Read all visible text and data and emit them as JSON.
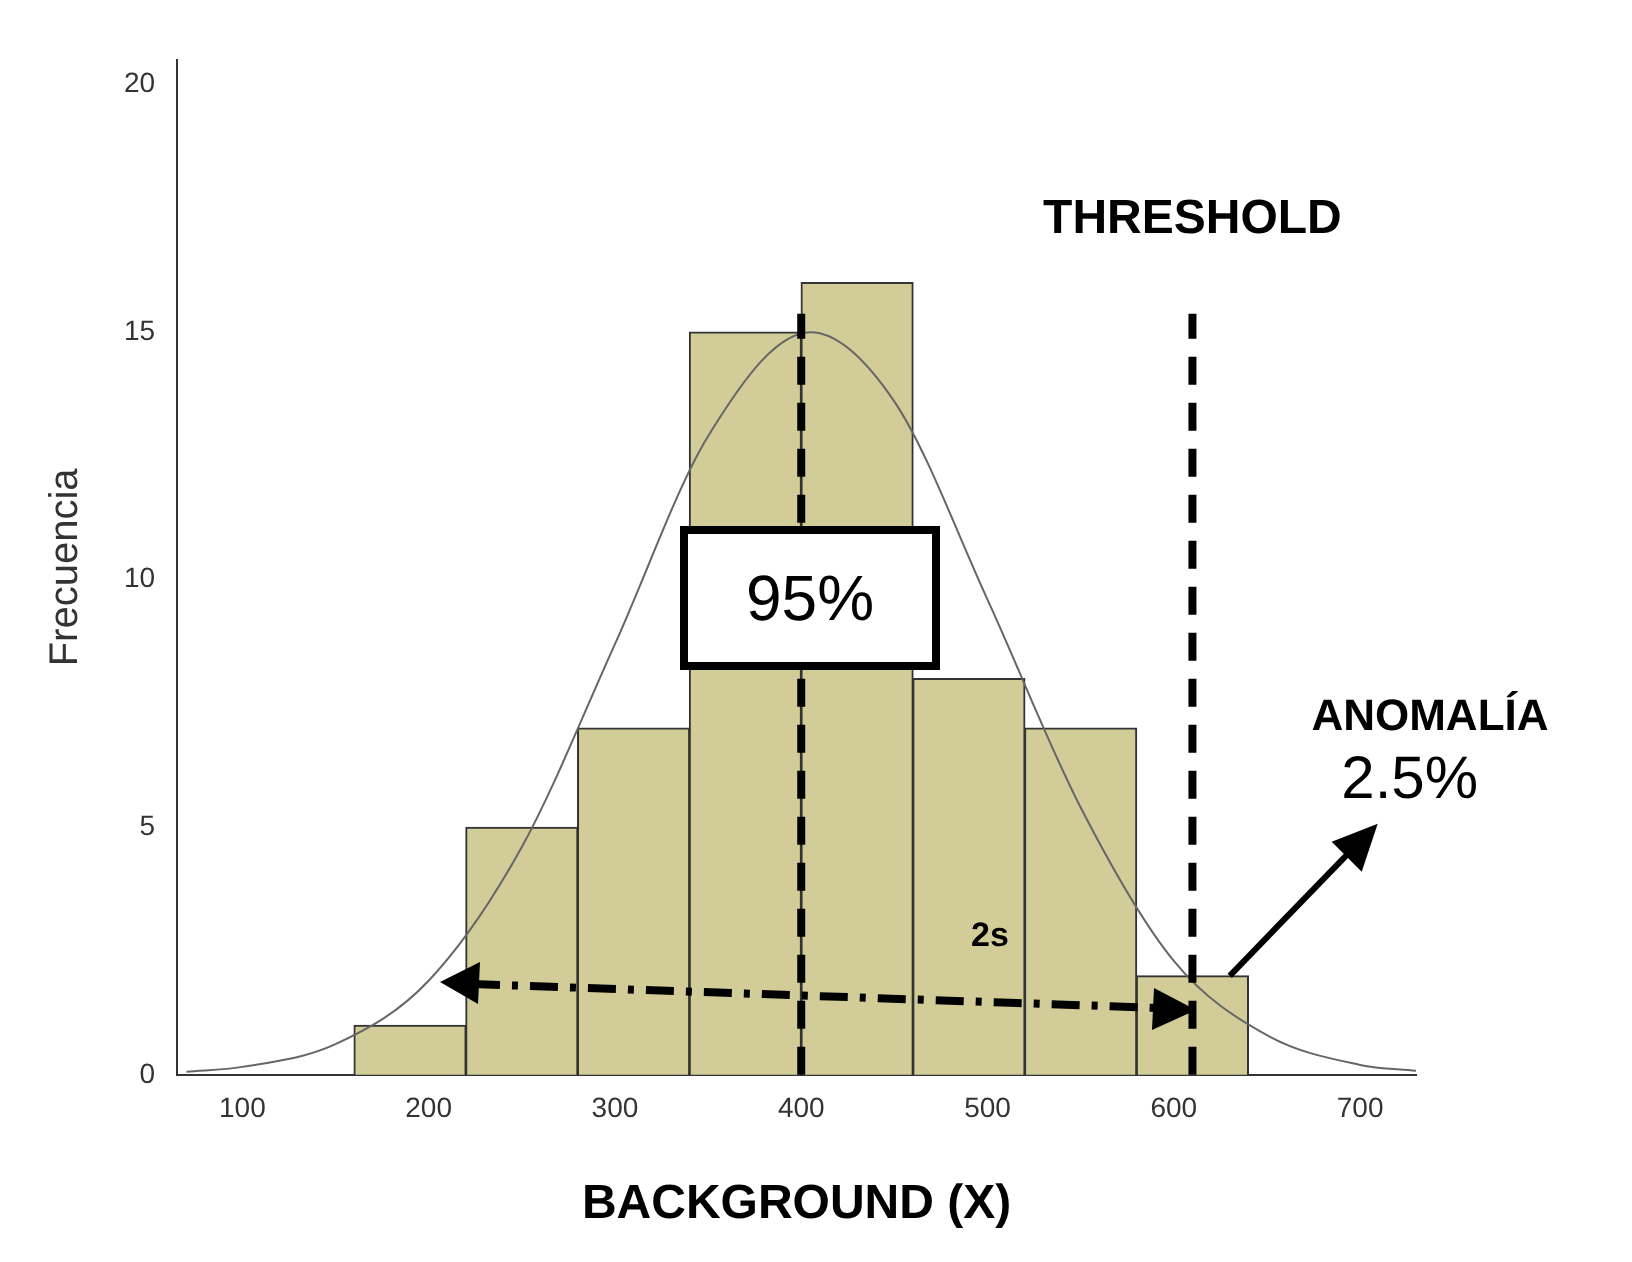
{
  "chart_data": {
    "type": "histogram",
    "xlabel": "BACKGROUND (X)",
    "ylabel": "Frecuencia",
    "bins": [
      160,
      220,
      280,
      340,
      400,
      460,
      520,
      580,
      640
    ],
    "values": [
      1,
      5,
      7,
      15,
      16,
      8,
      7,
      2
    ],
    "color": "#d2cd98",
    "series": [
      {
        "type": "line",
        "color": "#666666",
        "x": [
          70,
          100,
          150,
          200,
          250,
          300,
          350,
          405,
          450,
          500,
          550,
          600,
          650,
          700,
          730
        ],
        "values": [
          0.06,
          0.16,
          0.62,
          1.9,
          4.6,
          8.7,
          12.9,
          15,
          13.6,
          9.6,
          5.4,
          2.3,
          0.8,
          0.2,
          0.08
        ]
      }
    ],
    "xlim": [
      65,
      730
    ],
    "xticks": [
      100,
      200,
      300,
      400,
      500,
      600,
      700
    ],
    "ylim": [
      0,
      20.5
    ],
    "yticks": [
      0,
      5,
      10,
      15,
      20
    ],
    "ref_lines": [
      {
        "axis": "x",
        "value": 400,
        "color": "#000000",
        "line_style": "dashed"
      },
      {
        "axis": "x",
        "value": 610,
        "label": "THRESHOLD",
        "color": "#000000",
        "line_style": "dashed"
      }
    ],
    "annotations": [
      "95%",
      "ANOMALÍA",
      {
        "text": "2.5%",
        "x": 630,
        "y": 2
      },
      "2s"
    ]
  }
}
